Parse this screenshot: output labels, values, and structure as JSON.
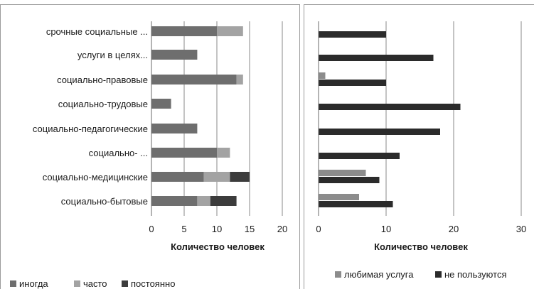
{
  "colors": {
    "inogda": "#6e6e6e",
    "chasto": "#a3a3a3",
    "postoyanno": "#3c3c3c",
    "lyubimaya": "#8c8c8c",
    "ne_polzuyutsya": "#2b2b2b",
    "grid": "#8a8a8a",
    "axis": "#6a6a6a",
    "frame": "#9a9a9a",
    "text": "#1a1a1a"
  },
  "chart_data": [
    {
      "type": "bar",
      "orientation": "horizontal",
      "stacked": true,
      "categories": [
        "срочные социальные ...",
        "услуги в целях...",
        "социально-правовые",
        "социально-трудовые",
        "социально-педагогические",
        "социально- ...",
        "социально-медицинские",
        "социально-бытовые"
      ],
      "series": [
        {
          "name": "иногда",
          "values": [
            10,
            7,
            13,
            3,
            7,
            10,
            8,
            7
          ]
        },
        {
          "name": "часто",
          "values": [
            4,
            0,
            1,
            0,
            0,
            2,
            4,
            2
          ]
        },
        {
          "name": "постоянно",
          "values": [
            0,
            0,
            0,
            0,
            0,
            0,
            3,
            4
          ]
        }
      ],
      "xlabel": "Количество человек",
      "ylabel": "",
      "xlim": [
        0,
        20
      ],
      "xticks": [
        "0",
        "5",
        "10",
        "15",
        "20"
      ],
      "grid": true,
      "legend": "bottom"
    },
    {
      "type": "bar",
      "orientation": "horizontal",
      "stacked": false,
      "categories_count": 8,
      "series": [
        {
          "name": "любимая услуга",
          "values": [
            0,
            0,
            1,
            0,
            0,
            0,
            7,
            6
          ]
        },
        {
          "name": "не пользуются",
          "values": [
            10,
            17,
            10,
            21,
            18,
            12,
            9,
            11
          ]
        }
      ],
      "xlabel": "Количество человек",
      "ylabel": "",
      "xlim": [
        0,
        30
      ],
      "xticks": [
        "0",
        "10",
        "20",
        "30"
      ],
      "grid": true,
      "legend": "bottom"
    }
  ]
}
